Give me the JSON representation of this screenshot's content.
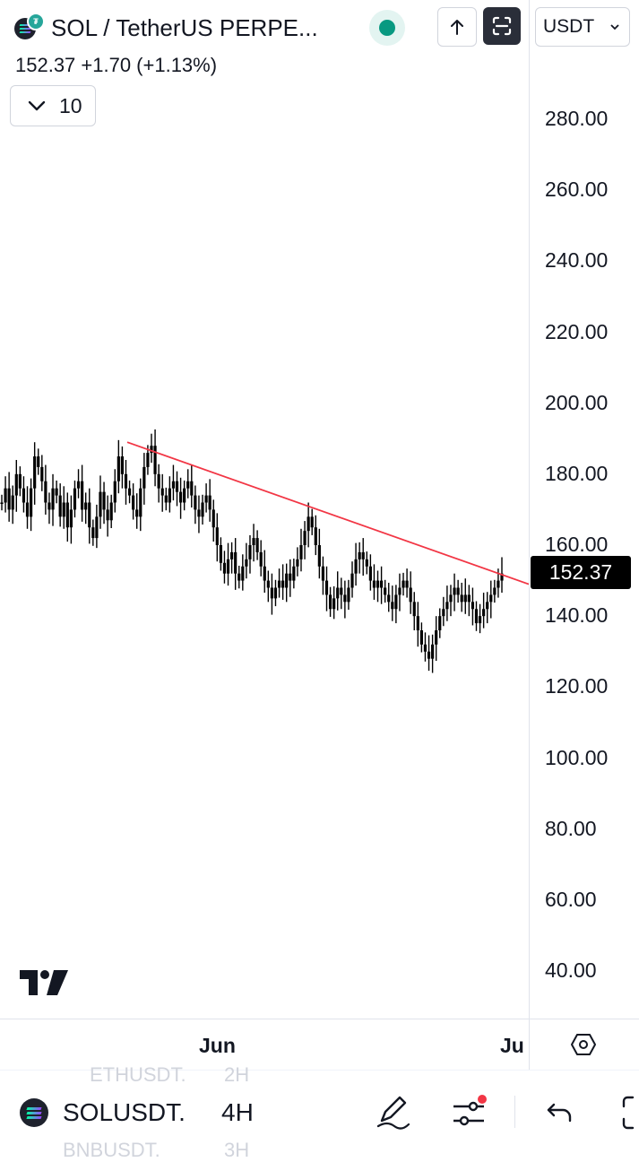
{
  "header": {
    "symbol_title": "SOL / TetherUS PERPE...",
    "price_line": "152.37  +1.70 (+1.13%)",
    "currency": "USDT",
    "indicator_count": "10",
    "logo_icon": "solana-icon"
  },
  "chart_data": {
    "type": "candlestick",
    "price_axis_ticks": [
      "280.00",
      "260.00",
      "240.00",
      "220.00",
      "200.00",
      "180.00",
      "160.00",
      "140.00",
      "120.00",
      "100.00",
      "80.00",
      "60.00",
      "40.00"
    ],
    "time_axis_ticks": [
      "Jun",
      "Ju"
    ],
    "last_price": "152.37",
    "ylim": [
      33,
      303
    ],
    "trendline": {
      "from": 189,
      "to": 149,
      "color": "#f23645"
    },
    "series": [
      {
        "name": "",
        "close": [
          172,
          176,
          170,
          174,
          180,
          176,
          172,
          168,
          176,
          185,
          182,
          178,
          172,
          170,
          176,
          174,
          168,
          172,
          165,
          170,
          176,
          178,
          170,
          172,
          165,
          162,
          168,
          175,
          170,
          167,
          172,
          178,
          185,
          180,
          176,
          174,
          170,
          168,
          176,
          182,
          186,
          188,
          180,
          176,
          174,
          172,
          176,
          178,
          175,
          172,
          176,
          178,
          174,
          170,
          168,
          172,
          174,
          170,
          165,
          160,
          155,
          152,
          156,
          158,
          152,
          150,
          154,
          156,
          160,
          162,
          158,
          154,
          150,
          148,
          145,
          148,
          150,
          148,
          152,
          150,
          154,
          156,
          160,
          164,
          168,
          165,
          160,
          154,
          150,
          146,
          142,
          145,
          148,
          146,
          144,
          148,
          152,
          156,
          158,
          156,
          154,
          150,
          148,
          150,
          148,
          146,
          144,
          142,
          146,
          148,
          150,
          148,
          144,
          140,
          136,
          132,
          130,
          128,
          132,
          136,
          140,
          142,
          144,
          146,
          148,
          146,
          144,
          146,
          144,
          142,
          138,
          140,
          142,
          144,
          146,
          148,
          150,
          152
        ]
      }
    ]
  },
  "bottom_bar": {
    "symbol": "SOLUSDT.",
    "timeframe": "4H",
    "ghost_symbol_above": "ETHUSDT.",
    "ghost_tf_above": "2H",
    "ghost_symbol_below": "BNBUSDT.",
    "ghost_tf_below": "3H"
  }
}
